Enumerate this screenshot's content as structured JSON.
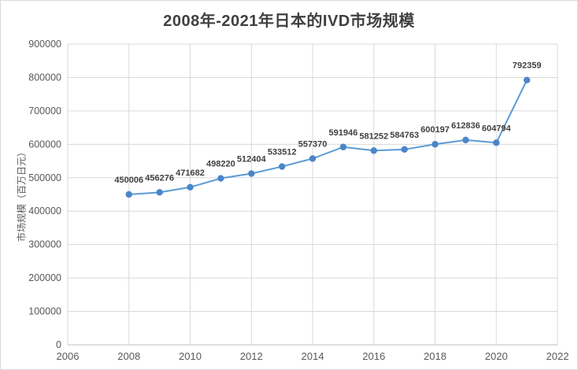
{
  "chart_data": {
    "type": "line",
    "title": "2008年-2021年日本的IVD市场规模",
    "xlabel": "",
    "ylabel": "市场规模（百万日元）",
    "x": [
      2008,
      2009,
      2010,
      2011,
      2012,
      2013,
      2014,
      2015,
      2016,
      2017,
      2018,
      2019,
      2020,
      2021
    ],
    "values": [
      450006,
      456276,
      471682,
      498220,
      512404,
      533512,
      557370,
      591946,
      581252,
      584763,
      600197,
      612836,
      604794,
      792359
    ],
    "xlim": [
      2006,
      2022
    ],
    "ylim": [
      0,
      900000
    ],
    "x_ticks": [
      2006,
      2008,
      2010,
      2012,
      2014,
      2016,
      2018,
      2020,
      2022
    ],
    "y_ticks": [
      0,
      100000,
      200000,
      300000,
      400000,
      500000,
      600000,
      700000,
      800000,
      900000
    ],
    "grid": true,
    "legend": "none",
    "data_labels": true,
    "marker": "circle",
    "colors": {
      "line": "#5B9BD5",
      "marker": "#4A86C8",
      "gridline": "#D9D9D9",
      "axis_line": "#BFBFBF",
      "title": "#404040",
      "tick_label": "#595959",
      "data_label": "#404040"
    }
  }
}
